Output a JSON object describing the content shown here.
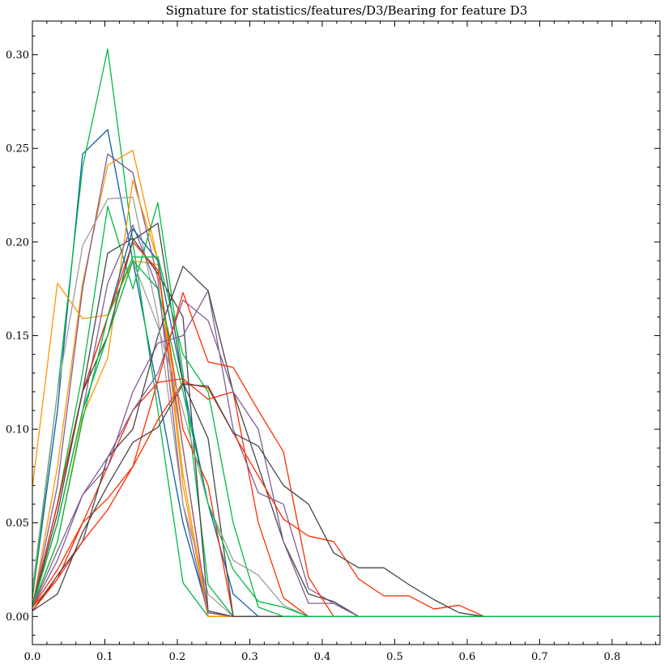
{
  "chart_data": {
    "type": "line",
    "title": "Signature for statistics/features/D3/Bearing for feature D3",
    "xlabel": "",
    "ylabel": "",
    "xlim": [
      0.0,
      0.866
    ],
    "ylim": [
      -0.015,
      0.318
    ],
    "x_ticks": [
      0.0,
      0.1,
      0.2,
      0.3,
      0.4,
      0.5,
      0.6,
      0.7,
      0.8
    ],
    "x_tick_labels": [
      "0.0",
      "0.1",
      "0.2",
      "0.3",
      "0.4",
      "0.5",
      "0.6",
      "0.7",
      "0.8"
    ],
    "y_ticks": [
      0.0,
      0.05,
      0.1,
      0.15,
      0.2,
      0.25,
      0.3
    ],
    "y_tick_labels": [
      "0.00",
      "0.05",
      "0.10",
      "0.15",
      "0.20",
      "0.25",
      "0.30"
    ],
    "grid": false,
    "legend": "none",
    "x": [
      0.0,
      0.0346,
      0.0693,
      0.1039,
      0.1386,
      0.1732,
      0.2078,
      0.2425,
      0.2771,
      0.3118,
      0.3464,
      0.381,
      0.4157,
      0.4503,
      0.485,
      0.5196,
      0.5542,
      0.5889,
      0.6235,
      0.6582,
      0.6928,
      0.7274,
      0.7621,
      0.7967,
      0.8314,
      0.866
    ],
    "series": [
      {
        "color": "#0c5da5",
        "values": [
          0.01,
          0.11,
          0.247,
          0.26,
          0.19,
          0.12,
          0.05,
          0.002,
          0.0,
          0.0,
          0.0,
          0.0,
          0.0,
          0.0,
          0.0,
          0.0,
          0.0,
          0.0,
          0.0,
          0.0,
          0.0,
          0.0,
          0.0,
          0.0,
          0.0,
          0.0
        ]
      },
      {
        "color": "#00b945",
        "values": [
          0.01,
          0.12,
          0.24,
          0.303,
          0.2,
          0.11,
          0.018,
          0.0,
          0.0,
          0.0,
          0.0,
          0.0,
          0.0,
          0.0,
          0.0,
          0.0,
          0.0,
          0.0,
          0.0,
          0.0,
          0.0,
          0.0,
          0.0,
          0.0,
          0.0,
          0.0
        ]
      },
      {
        "color": "#ff9500",
        "values": [
          0.005,
          0.08,
          0.178,
          0.241,
          0.249,
          0.19,
          0.07,
          0.0,
          0.0,
          0.0,
          0.0,
          0.0,
          0.0,
          0.0,
          0.0,
          0.0,
          0.0,
          0.0,
          0.0,
          0.0,
          0.0,
          0.0,
          0.0,
          0.0,
          0.0,
          0.0
        ]
      },
      {
        "color": "#845b97",
        "values": [
          0.005,
          0.07,
          0.175,
          0.247,
          0.237,
          0.18,
          0.06,
          0.0,
          0.0,
          0.0,
          0.0,
          0.0,
          0.0,
          0.0,
          0.0,
          0.0,
          0.0,
          0.0,
          0.0,
          0.0,
          0.0,
          0.0,
          0.0,
          0.0,
          0.0,
          0.0
        ]
      },
      {
        "color": "#9e9e9e",
        "values": [
          0.015,
          0.12,
          0.198,
          0.223,
          0.224,
          0.16,
          0.06,
          0.012,
          0.0,
          0.0,
          0.0,
          0.0,
          0.0,
          0.0,
          0.0,
          0.0,
          0.0,
          0.0,
          0.0,
          0.0,
          0.0,
          0.0,
          0.0,
          0.0,
          0.0,
          0.0
        ]
      },
      {
        "color": "#ff9500",
        "values": [
          0.069,
          0.178,
          0.159,
          0.161,
          0.19,
          0.188,
          0.09,
          0.0,
          0.0,
          0.0,
          0.0,
          0.0,
          0.0,
          0.0,
          0.0,
          0.0,
          0.0,
          0.0,
          0.0,
          0.0,
          0.0,
          0.0,
          0.0,
          0.0,
          0.0,
          0.0
        ]
      },
      {
        "color": "#00b945",
        "values": [
          0.005,
          0.06,
          0.13,
          0.219,
          0.175,
          0.221,
          0.13,
          0.017,
          0.0,
          0.0,
          0.0,
          0.0,
          0.0,
          0.0,
          0.0,
          0.0,
          0.0,
          0.0,
          0.0,
          0.0,
          0.0,
          0.0,
          0.0,
          0.0,
          0.0,
          0.0
        ]
      },
      {
        "color": "#474747",
        "values": [
          0.005,
          0.06,
          0.12,
          0.194,
          0.202,
          0.183,
          0.16,
          0.003,
          0.0,
          0.0,
          0.0,
          0.0,
          0.0,
          0.0,
          0.0,
          0.0,
          0.0,
          0.0,
          0.0,
          0.0,
          0.0,
          0.0,
          0.0,
          0.0,
          0.0,
          0.0
        ]
      },
      {
        "color": "#ff9500",
        "values": [
          0.005,
          0.04,
          0.107,
          0.138,
          0.233,
          0.19,
          0.076,
          0.0,
          0.0,
          0.0,
          0.0,
          0.0,
          0.0,
          0.0,
          0.0,
          0.0,
          0.0,
          0.0,
          0.0,
          0.0,
          0.0,
          0.0,
          0.0,
          0.0,
          0.0,
          0.0
        ]
      },
      {
        "color": "#845b97",
        "values": [
          0.005,
          0.05,
          0.11,
          0.178,
          0.209,
          0.175,
          0.09,
          0.002,
          0.0,
          0.0,
          0.0,
          0.0,
          0.0,
          0.0,
          0.0,
          0.0,
          0.0,
          0.0,
          0.0,
          0.0,
          0.0,
          0.0,
          0.0,
          0.0,
          0.0,
          0.0
        ]
      },
      {
        "color": "#0c5da5",
        "values": [
          0.005,
          0.06,
          0.12,
          0.16,
          0.207,
          0.19,
          0.125,
          0.06,
          0.012,
          0.0,
          0.0,
          0.0,
          0.0,
          0.0,
          0.0,
          0.0,
          0.0,
          0.0,
          0.0,
          0.0,
          0.0,
          0.0,
          0.0,
          0.0,
          0.0,
          0.0
        ]
      },
      {
        "color": "#ff2c00",
        "values": [
          0.005,
          0.06,
          0.12,
          0.16,
          0.2,
          0.185,
          0.1,
          0.07,
          0.0,
          0.0,
          0.0,
          0.0,
          0.0,
          0.0,
          0.0,
          0.0,
          0.0,
          0.0,
          0.0,
          0.0,
          0.0,
          0.0,
          0.0,
          0.0,
          0.0,
          0.0
        ]
      },
      {
        "color": "#474747",
        "values": [
          0.005,
          0.055,
          0.12,
          0.15,
          0.201,
          0.21,
          0.125,
          0.095,
          0.0,
          0.0,
          0.0,
          0.0,
          0.0,
          0.0,
          0.0,
          0.0,
          0.0,
          0.0,
          0.0,
          0.0,
          0.0,
          0.0,
          0.0,
          0.0,
          0.0,
          0.0
        ]
      },
      {
        "color": "#00b945",
        "values": [
          0.005,
          0.04,
          0.105,
          0.16,
          0.192,
          0.192,
          0.14,
          0.12,
          0.05,
          0.005,
          0.0,
          0.0,
          0.0,
          0.0,
          0.0,
          0.0,
          0.0,
          0.0,
          0.0,
          0.0,
          0.0,
          0.0,
          0.0,
          0.0,
          0.0,
          0.0
        ]
      },
      {
        "color": "#ff2c00",
        "values": [
          0.005,
          0.02,
          0.05,
          0.08,
          0.11,
          0.125,
          0.127,
          0.116,
          0.12,
          0.05,
          0.01,
          0.0,
          0.0,
          0.0,
          0.0,
          0.0,
          0.0,
          0.0,
          0.0,
          0.0,
          0.0,
          0.0,
          0.0,
          0.0,
          0.0,
          0.0
        ]
      },
      {
        "color": "#845b97",
        "values": [
          0.005,
          0.03,
          0.065,
          0.08,
          0.12,
          0.146,
          0.15,
          0.174,
          0.1,
          0.066,
          0.06,
          0.015,
          0.007,
          0.0,
          0.0,
          0.0,
          0.0,
          0.0,
          0.0,
          0.0,
          0.0,
          0.0,
          0.0,
          0.0,
          0.0,
          0.0
        ]
      },
      {
        "color": "#474747",
        "values": [
          0.003,
          0.022,
          0.04,
          0.085,
          0.1,
          0.15,
          0.187,
          0.174,
          0.12,
          0.08,
          0.04,
          0.012,
          0.008,
          0.0,
          0.0,
          0.0,
          0.0,
          0.0,
          0.0,
          0.0,
          0.0,
          0.0,
          0.0,
          0.0,
          0.0,
          0.0
        ]
      },
      {
        "color": "#845b97",
        "values": [
          0.005,
          0.035,
          0.065,
          0.085,
          0.11,
          0.13,
          0.169,
          0.158,
          0.12,
          0.1,
          0.04,
          0.007,
          0.007,
          0.0,
          0.0,
          0.0,
          0.0,
          0.0,
          0.0,
          0.0,
          0.0,
          0.0,
          0.0,
          0.0,
          0.0,
          0.0
        ]
      },
      {
        "color": "#ff2c00",
        "values": [
          0.005,
          0.025,
          0.05,
          0.063,
          0.08,
          0.126,
          0.173,
          0.136,
          0.133,
          0.11,
          0.088,
          0.021,
          0.0,
          0.0,
          0.0,
          0.0,
          0.0,
          0.0,
          0.0,
          0.0,
          0.0,
          0.0,
          0.0,
          0.0,
          0.0,
          0.0
        ]
      },
      {
        "color": "#ff2c00",
        "values": [
          0.003,
          0.02,
          0.04,
          0.057,
          0.08,
          0.105,
          0.125,
          0.122,
          0.098,
          0.075,
          0.052,
          0.043,
          0.04,
          0.02,
          0.011,
          0.011,
          0.004,
          0.006,
          0.0,
          0.0,
          0.0,
          0.0,
          0.0,
          0.0,
          0.0,
          0.0
        ]
      },
      {
        "color": "#474747",
        "values": [
          0.003,
          0.012,
          0.045,
          0.07,
          0.093,
          0.101,
          0.124,
          0.123,
          0.098,
          0.091,
          0.07,
          0.06,
          0.034,
          0.026,
          0.026,
          0.017,
          0.009,
          0.002,
          0.0,
          0.0,
          0.0,
          0.0,
          0.0,
          0.0,
          0.0,
          0.0
        ]
      },
      {
        "color": "#9e9e9e",
        "values": [
          0.005,
          0.05,
          0.11,
          0.15,
          0.19,
          0.155,
          0.11,
          0.06,
          0.03,
          0.022,
          0.006,
          0.0,
          0.0,
          0.0,
          0.0,
          0.0,
          0.0,
          0.0,
          0.0,
          0.0,
          0.0,
          0.0,
          0.0,
          0.0,
          0.0,
          0.0
        ]
      },
      {
        "color": "#00b945",
        "values": [
          0.005,
          0.05,
          0.11,
          0.15,
          0.19,
          0.175,
          0.12,
          0.06,
          0.025,
          0.008,
          0.005,
          0.0,
          0.0,
          0.0,
          0.0,
          0.0,
          0.0,
          0.0,
          0.0,
          0.0,
          0.0,
          0.0,
          0.0,
          0.0,
          0.0,
          0.0
        ]
      }
    ]
  }
}
